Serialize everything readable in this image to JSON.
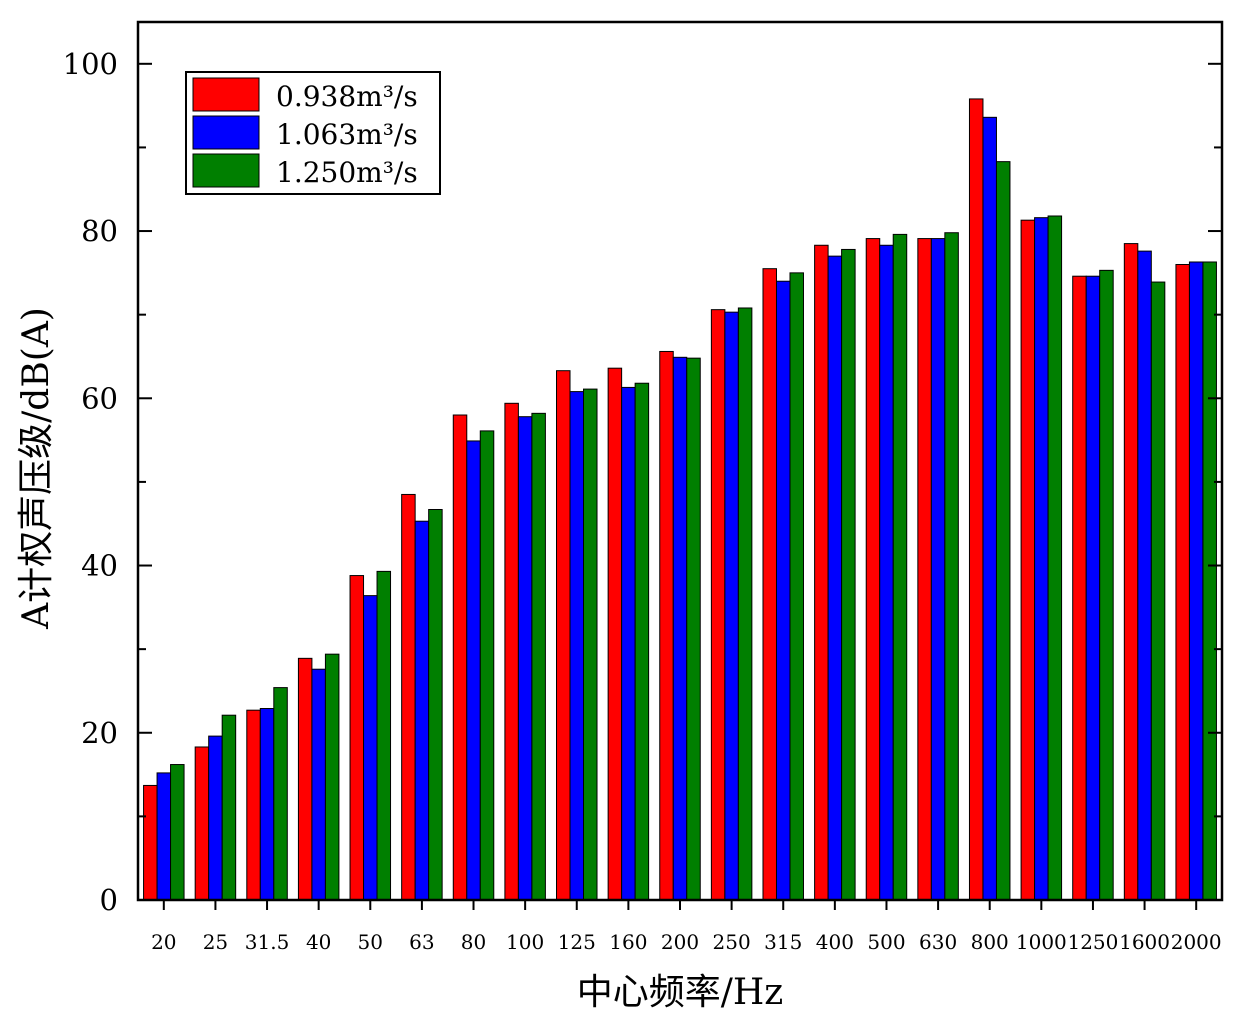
{
  "chart_data": {
    "type": "bar",
    "xlabel": "中心频率/Hz",
    "ylabel": "A计权声压级/dB(A)",
    "ylim": [
      0,
      105
    ],
    "yticks": [
      "0",
      "20",
      "40",
      "60",
      "80",
      "100"
    ],
    "grid": false,
    "legend_position": "top-left",
    "categories": [
      "20",
      "25",
      "31.5",
      "40",
      "50",
      "63",
      "80",
      "100",
      "125",
      "160",
      "200",
      "250",
      "315",
      "400",
      "500",
      "630",
      "800",
      "1000",
      "1250",
      "1600",
      "2000"
    ],
    "series": [
      {
        "name": "0.938m³/s",
        "color": "#ff0000",
        "values": [
          13.7,
          18.3,
          22.7,
          28.9,
          38.8,
          48.5,
          58.0,
          59.4,
          63.3,
          63.6,
          65.6,
          70.6,
          75.5,
          78.3,
          79.1,
          79.1,
          95.8,
          81.3,
          74.6,
          78.5,
          76.0
        ]
      },
      {
        "name": "1.063m³/s",
        "color": "#0000ff",
        "values": [
          15.2,
          19.6,
          22.9,
          27.6,
          36.4,
          45.3,
          54.9,
          57.8,
          60.8,
          61.3,
          64.9,
          70.3,
          74.0,
          77.0,
          78.3,
          79.1,
          93.6,
          81.6,
          74.6,
          77.6,
          76.3
        ]
      },
      {
        "name": "1.250m³/s",
        "color": "#007f00",
        "values": [
          16.2,
          22.1,
          25.4,
          29.4,
          39.3,
          46.7,
          56.1,
          58.2,
          61.1,
          61.8,
          64.8,
          70.8,
          75.0,
          77.8,
          79.6,
          79.8,
          88.3,
          81.8,
          75.3,
          73.9,
          76.3
        ]
      }
    ]
  }
}
